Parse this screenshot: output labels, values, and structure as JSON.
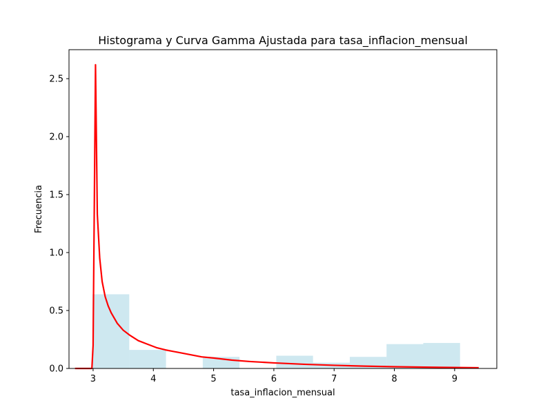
{
  "chart_data": {
    "type": "bar",
    "title": "Histograma y Curva Gamma Ajustada para tasa_inflacion_mensual",
    "xlabel": "tasa_inflacion_mensual",
    "ylabel": "Frecuencia",
    "xlim": [
      2.6,
      9.7
    ],
    "ylim": [
      0,
      2.75
    ],
    "xticks": [
      3,
      4,
      5,
      6,
      7,
      8,
      9
    ],
    "yticks": [
      0.0,
      0.5,
      1.0,
      1.5,
      2.0,
      2.5
    ],
    "xtick_labels": [
      "3",
      "4",
      "5",
      "6",
      "7",
      "8",
      "9"
    ],
    "ytick_labels": [
      "0.0",
      "0.5",
      "1.0",
      "1.5",
      "2.0",
      "2.5"
    ],
    "grid": false,
    "bar_color": "#add8e6",
    "bar_opacity": 0.6,
    "line_color": "#ff0000",
    "histogram": {
      "bin_edges": [
        2.99,
        3.6,
        4.21,
        4.82,
        5.43,
        6.04,
        6.65,
        7.26,
        7.87,
        8.48,
        9.09
      ],
      "values": [
        0.64,
        0.16,
        0.0,
        0.1,
        0.0,
        0.11,
        0.05,
        0.1,
        0.21,
        0.22
      ]
    },
    "fitted_curve": {
      "x": [
        2.7,
        2.98,
        3.0,
        3.04,
        3.07,
        3.11,
        3.15,
        3.2,
        3.25,
        3.3,
        3.4,
        3.5,
        3.6,
        3.75,
        3.9,
        4.05,
        4.2,
        4.4,
        4.6,
        4.8,
        5.0,
        5.3,
        5.6,
        6.0,
        6.5,
        7.0,
        7.5,
        8.0,
        8.5,
        9.0,
        9.4
      ],
      "y": [
        0.0,
        0.0,
        0.2,
        2.62,
        1.33,
        0.95,
        0.75,
        0.62,
        0.54,
        0.48,
        0.39,
        0.33,
        0.29,
        0.24,
        0.21,
        0.18,
        0.16,
        0.14,
        0.12,
        0.1,
        0.09,
        0.072,
        0.06,
        0.048,
        0.036,
        0.027,
        0.02,
        0.015,
        0.011,
        0.008,
        0.006
      ]
    }
  }
}
